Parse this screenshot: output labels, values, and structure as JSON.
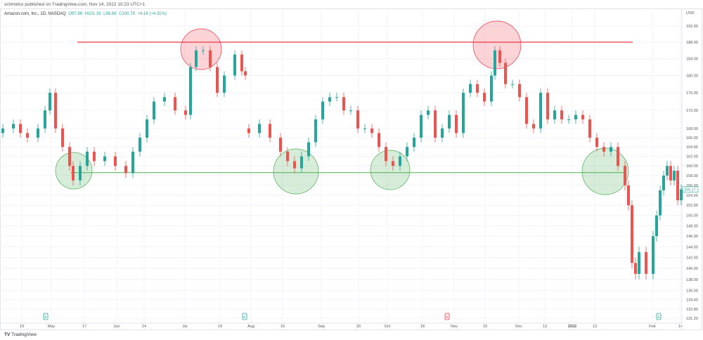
{
  "header": {
    "published": "schmidco published on TradingView.com, Nov 14, 2022 10:23 UTC+1"
  },
  "legend": {
    "symbol": "Amazon.com, Inc., 1D, NASDAQ",
    "open": "O97.88",
    "high": "H101.19",
    "low": "L96.66",
    "close": "C100.79",
    "change": "+4.16 (+4.31%)"
  },
  "footer": {
    "logo": "TradingView"
  },
  "chart_data": {
    "type": "candlestick",
    "title": "Amazon.com, Inc., 1D, NASDAQ",
    "currency": "USD",
    "y_scale": "log",
    "ylim": [
      131.2,
      194
    ],
    "y_ticks": [
      "192.00",
      "188.00",
      "184.00",
      "180.00",
      "176.00",
      "172.00",
      "168.00",
      "166.00",
      "164.00",
      "162.00",
      "160.00",
      "158.00",
      "156.00",
      "154.00",
      "152.00",
      "150.00",
      "148.00",
      "146.00",
      "144.00",
      "142.00",
      "140.00",
      "138.00",
      "136.00",
      "134.40",
      "132.80",
      "131.20"
    ],
    "y_tick_values": [
      192,
      188,
      184,
      180,
      176,
      172,
      168,
      166,
      164,
      162,
      160,
      158,
      156,
      154,
      152,
      150,
      148,
      146,
      144,
      142,
      140,
      138,
      136,
      134.4,
      132.8,
      131.2
    ],
    "x_ticks": [
      "19",
      "May",
      "17",
      "Jun",
      "14",
      "Jul",
      "19",
      "Aug",
      "16",
      "Sep",
      "20",
      "Oct",
      "18",
      "Nov",
      "15",
      "Dec",
      "13",
      "2022",
      "13",
      "Feb",
      "14"
    ],
    "last_price": "155.17",
    "last_price_value": 155.17,
    "closes": [
      168,
      169,
      167,
      166,
      168,
      172,
      176,
      168,
      164,
      160,
      157,
      160,
      163,
      161,
      162,
      160,
      158.5,
      163,
      166,
      170,
      174,
      175,
      172,
      171,
      182,
      186,
      186,
      182,
      176,
      180,
      185,
      181,
      180,
      167,
      169,
      166,
      163,
      161,
      159.5,
      162,
      165,
      170,
      174,
      175,
      175,
      172,
      172,
      168,
      168,
      167,
      164,
      161,
      160,
      162,
      164,
      166,
      171,
      172,
      166,
      168,
      171,
      167,
      176,
      178,
      176,
      174,
      180,
      186,
      183,
      178,
      178,
      175,
      169,
      168,
      176,
      170,
      172,
      170,
      170,
      171,
      170,
      166,
      164,
      163,
      164,
      160,
      156,
      152,
      141,
      139,
      143,
      139,
      146,
      150,
      155,
      158,
      160,
      157,
      159,
      153,
      155.17
    ],
    "gap_opens": {
      "33": 168
    },
    "resistance": {
      "value": 188,
      "color": "#f23645"
    },
    "support": {
      "value": 158.6,
      "color": "#4caf50"
    },
    "earnings_markers": [
      {
        "label": "E",
        "color": "#26a69a"
      },
      {
        "label": "E",
        "color": "#26a69a"
      },
      {
        "label": "E",
        "color": "#f23645"
      },
      {
        "label": "E",
        "color": "#26a69a"
      }
    ],
    "colors": {
      "up": "#26a69a",
      "down": "#ef5350"
    }
  }
}
